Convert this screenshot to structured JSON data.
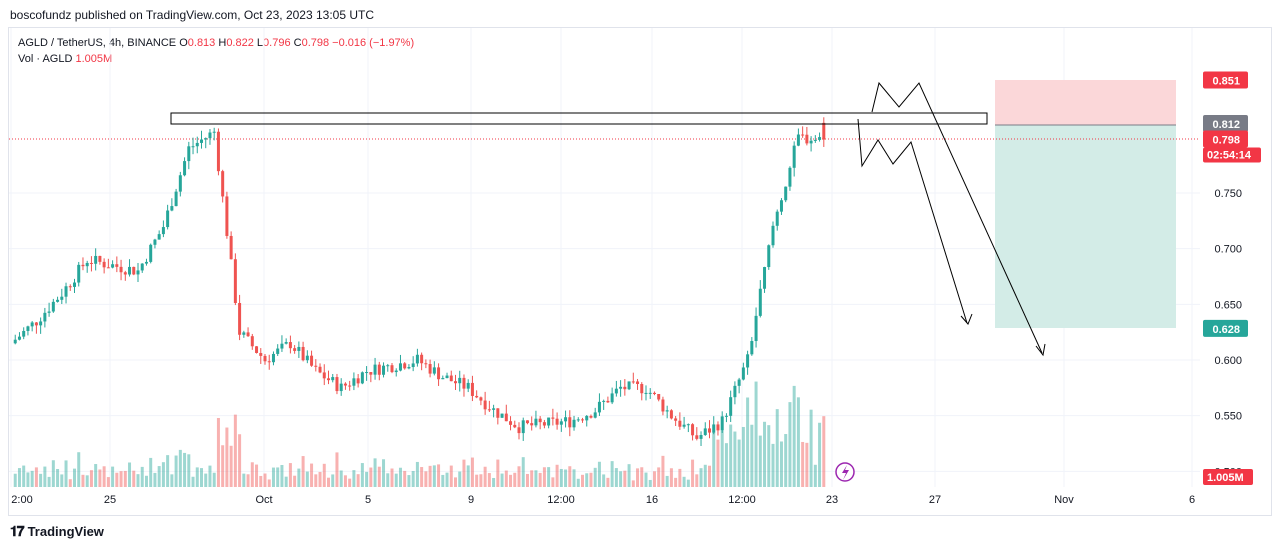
{
  "header": {
    "text": "boscofundz published on TradingView.com, Oct 23, 2023 13:05 UTC"
  },
  "legend": {
    "symbol": "AGLD / TetherUS, 4h, BINANCE",
    "o_label": "O",
    "o_value": "0.813",
    "h_label": "H",
    "h_value": "0.822",
    "l_label": "L",
    "l_value": "0.796",
    "c_label": "C",
    "c_value": "0.798",
    "change": "−0.016 (−1.97%)",
    "vol_label": "Vol · AGLD",
    "vol_value": "1.005M"
  },
  "price_axis": {
    "ticks": [
      "0.750",
      "0.700",
      "0.650",
      "0.600",
      "0.550",
      "0.500"
    ],
    "badges": {
      "stop": "0.851",
      "entry": "0.812",
      "last": "0.798",
      "countdown": "02:54:14",
      "target": "0.628",
      "volume": "1.005M"
    }
  },
  "time_axis": {
    "ticks": [
      "2:00",
      "25",
      "Oct",
      "5",
      "9",
      "12:00",
      "16",
      "12:00",
      "23",
      "27",
      "Nov",
      "6"
    ]
  },
  "footer": {
    "brand": "TradingView"
  },
  "colors": {
    "up": "#26a69a",
    "down": "#ef5350",
    "stop_zone": "#fbd7d9",
    "target_zone": "#d3ece7"
  },
  "chart_data": {
    "type": "candlestick",
    "title": "AGLD / TetherUS, 4h, BINANCE",
    "y_range": [
      0.5,
      0.87
    ],
    "anchors": [
      {
        "t": "09-21",
        "p": 0.615
      },
      {
        "t": "09-22",
        "p": 0.635
      },
      {
        "t": "09-23",
        "p": 0.66
      },
      {
        "t": "09-24",
        "p": 0.69
      },
      {
        "t": "09-25",
        "p": 0.685
      },
      {
        "t": "09-26",
        "p": 0.68
      },
      {
        "t": "09-27",
        "p": 0.72
      },
      {
        "t": "09-28",
        "p": 0.79
      },
      {
        "t": "09-29",
        "p": 0.805
      },
      {
        "t": "09-30",
        "p": 0.625
      },
      {
        "t": "10-01",
        "p": 0.6
      },
      {
        "t": "10-02",
        "p": 0.615
      },
      {
        "t": "10-03",
        "p": 0.59
      },
      {
        "t": "10-04",
        "p": 0.575
      },
      {
        "t": "10-05",
        "p": 0.59
      },
      {
        "t": "10-07",
        "p": 0.6
      },
      {
        "t": "10-08",
        "p": 0.585
      },
      {
        "t": "10-09",
        "p": 0.575
      },
      {
        "t": "10-10",
        "p": 0.555
      },
      {
        "t": "10-11",
        "p": 0.54
      },
      {
        "t": "10-13",
        "p": 0.545
      },
      {
        "t": "10-14",
        "p": 0.555
      },
      {
        "t": "10-15",
        "p": 0.575
      },
      {
        "t": "10-16",
        "p": 0.575
      },
      {
        "t": "10-17",
        "p": 0.55
      },
      {
        "t": "10-18",
        "p": 0.53
      },
      {
        "t": "10-19",
        "p": 0.545
      },
      {
        "t": "10-20",
        "p": 0.6
      },
      {
        "t": "10-21",
        "p": 0.72
      },
      {
        "t": "10-22",
        "p": 0.8
      },
      {
        "t": "10-23",
        "p": 0.798
      }
    ],
    "last_candle": {
      "open": 0.813,
      "high": 0.822,
      "low": 0.796,
      "close": 0.798,
      "volume": "1.005M"
    },
    "resistance_zone": [
      0.812,
      0.822
    ],
    "position": {
      "stop": 0.851,
      "entry": 0.812,
      "target": 0.628
    }
  }
}
